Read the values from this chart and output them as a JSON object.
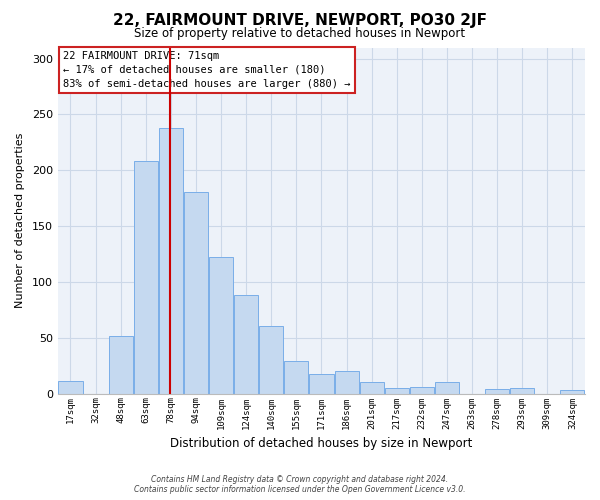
{
  "title": "22, FAIRMOUNT DRIVE, NEWPORT, PO30 2JF",
  "subtitle": "Size of property relative to detached houses in Newport",
  "xlabel": "Distribution of detached houses by size in Newport",
  "ylabel": "Number of detached properties",
  "bar_color": "#c5d9f0",
  "bar_edge_color": "#7aaee8",
  "categories": [
    "17sqm",
    "32sqm",
    "48sqm",
    "63sqm",
    "78sqm",
    "94sqm",
    "109sqm",
    "124sqm",
    "140sqm",
    "155sqm",
    "171sqm",
    "186sqm",
    "201sqm",
    "217sqm",
    "232sqm",
    "247sqm",
    "263sqm",
    "278sqm",
    "293sqm",
    "309sqm",
    "324sqm"
  ],
  "values": [
    11,
    0,
    52,
    208,
    238,
    181,
    122,
    88,
    61,
    29,
    18,
    20,
    10,
    5,
    6,
    10,
    0,
    4,
    5,
    0,
    3
  ],
  "ylim": [
    0,
    310
  ],
  "yticks": [
    0,
    50,
    100,
    150,
    200,
    250,
    300
  ],
  "vline_x": 3.97,
  "vline_color": "#cc0000",
  "annotation_text": "22 FAIRMOUNT DRIVE: 71sqm\n← 17% of detached houses are smaller (180)\n83% of semi-detached houses are larger (880) →",
  "footnote1": "Contains HM Land Registry data © Crown copyright and database right 2024.",
  "footnote2": "Contains public sector information licensed under the Open Government Licence v3.0.",
  "grid_color": "#ccd8e8",
  "background_color": "#ffffff",
  "plot_bg_color": "#edf2f9"
}
